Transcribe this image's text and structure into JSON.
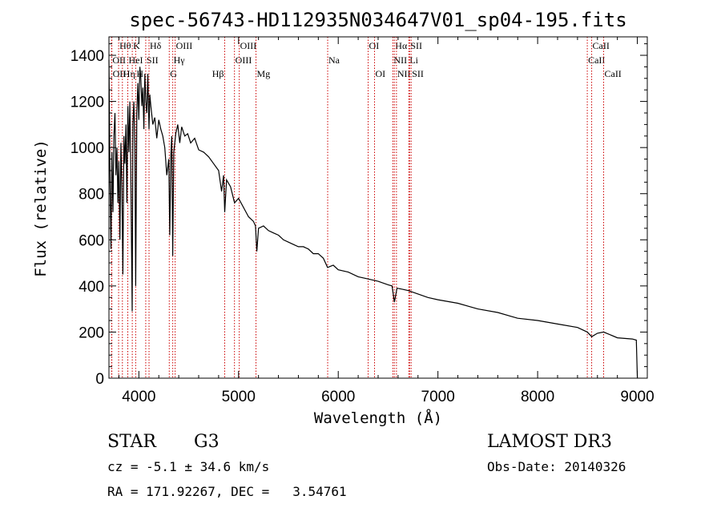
{
  "info": {
    "object_class": "STAR",
    "subclass": "G3",
    "survey": "LAMOST DR3",
    "cz": "cz = -5.1 ± 34.6 km/s",
    "obs_date": "Obs-Date: 20140326",
    "radec": "RA = 171.92267, DEC =   3.54761"
  },
  "colors": {
    "spectrum": "#000000",
    "line_marker": "#cc0000",
    "axes": "#000000"
  },
  "chart_data": {
    "type": "line",
    "title": "spec-56743-HD112935N034647V01_sp04-195.fits",
    "xlabel": "Wavelength (Å)",
    "ylabel": "Flux (relative)",
    "xlim": [
      3700,
      9100
    ],
    "ylim": [
      0,
      1480
    ],
    "xticks": [
      4000,
      5000,
      6000,
      7000,
      8000,
      9000
    ],
    "yticks": [
      0,
      200,
      400,
      600,
      800,
      1000,
      1200,
      1400
    ],
    "spectrum": {
      "name": "flux",
      "x": [
        3700,
        3710,
        3720,
        3730,
        3740,
        3750,
        3760,
        3770,
        3780,
        3790,
        3800,
        3810,
        3820,
        3830,
        3840,
        3850,
        3860,
        3870,
        3880,
        3890,
        3900,
        3910,
        3920,
        3933,
        3940,
        3950,
        3960,
        3968,
        3980,
        3990,
        4000,
        4010,
        4020,
        4030,
        4040,
        4050,
        4060,
        4070,
        4080,
        4090,
        4102,
        4110,
        4120,
        4140,
        4160,
        4180,
        4200,
        4220,
        4240,
        4260,
        4280,
        4300,
        4310,
        4320,
        4330,
        4340,
        4350,
        4370,
        4390,
        4410,
        4430,
        4460,
        4490,
        4520,
        4560,
        4600,
        4650,
        4700,
        4750,
        4800,
        4830,
        4850,
        4861,
        4880,
        4920,
        4960,
        5000,
        5050,
        5100,
        5150,
        5170,
        5183,
        5200,
        5250,
        5300,
        5350,
        5400,
        5450,
        5500,
        5550,
        5600,
        5650,
        5700,
        5750,
        5800,
        5850,
        5893,
        5950,
        6000,
        6100,
        6200,
        6300,
        6400,
        6500,
        6540,
        6563,
        6590,
        6650,
        6700,
        6800,
        6900,
        7000,
        7200,
        7400,
        7600,
        7800,
        8000,
        8200,
        8400,
        8498,
        8542,
        8600,
        8662,
        8800,
        8950,
        8990,
        9000
      ],
      "values": [
        1380,
        900,
        560,
        980,
        720,
        1050,
        1150,
        880,
        1000,
        760,
        940,
        600,
        1020,
        820,
        450,
        1050,
        930,
        1100,
        760,
        1180,
        980,
        1200,
        860,
        290,
        1100,
        1200,
        1000,
        400,
        1150,
        1280,
        1120,
        1350,
        1300,
        1180,
        1260,
        1080,
        1320,
        1200,
        1150,
        1320,
        1080,
        1230,
        1180,
        1100,
        1130,
        1040,
        1120,
        1080,
        1050,
        1000,
        880,
        950,
        620,
        960,
        1050,
        530,
        980,
        1060,
        1100,
        1020,
        1090,
        1050,
        1060,
        1020,
        1040,
        990,
        980,
        960,
        930,
        900,
        810,
        880,
        720,
        860,
        830,
        760,
        780,
        740,
        700,
        680,
        660,
        550,
        650,
        660,
        640,
        630,
        620,
        600,
        590,
        580,
        570,
        570,
        560,
        540,
        540,
        520,
        480,
        490,
        470,
        460,
        440,
        430,
        420,
        405,
        400,
        330,
        390,
        385,
        380,
        365,
        350,
        340,
        325,
        300,
        285,
        260,
        250,
        235,
        220,
        200,
        180,
        195,
        200,
        175,
        170,
        165,
        0
      ]
    },
    "line_markers": [
      {
        "label": "Hθ",
        "wl": 3797,
        "row": 0,
        "side": "right"
      },
      {
        "label": "OII",
        "wl": 3727,
        "row": 1,
        "side": "right"
      },
      {
        "label": "OII",
        "wl": 3729,
        "row": 2,
        "side": "right"
      },
      {
        "label": "K",
        "wl": 3934,
        "row": 0,
        "side": "right"
      },
      {
        "label": "HeI",
        "wl": 3889,
        "row": 1,
        "side": "right"
      },
      {
        "label": "Hη",
        "wl": 3835,
        "row": 2,
        "side": "right"
      },
      {
        "label": "SII",
        "wl": 4069,
        "row": 1,
        "side": "right"
      },
      {
        "label": "H",
        "wl": 3968,
        "row": 2,
        "side": "right"
      },
      {
        "label": "Hδ",
        "wl": 4102,
        "row": 0,
        "side": "right"
      },
      {
        "label": "OIII",
        "wl": 4364,
        "row": 0,
        "side": "right"
      },
      {
        "label": "Hγ",
        "wl": 4340,
        "row": 1,
        "side": "right"
      },
      {
        "label": "G",
        "wl": 4305,
        "row": 2,
        "side": "right"
      },
      {
        "label": "Hβ",
        "wl": 4861,
        "row": 2,
        "side": "left"
      },
      {
        "label": "OIII",
        "wl": 4959,
        "row": 1,
        "side": "right"
      },
      {
        "label": "OIII",
        "wl": 5007,
        "row": 0,
        "side": "right"
      },
      {
        "label": "Mg",
        "wl": 5175,
        "row": 2,
        "side": "right"
      },
      {
        "label": "Na",
        "wl": 5894,
        "row": 1,
        "side": "right"
      },
      {
        "label": "OI",
        "wl": 6300,
        "row": 0,
        "side": "right"
      },
      {
        "label": "OI",
        "wl": 6364,
        "row": 2,
        "side": "right"
      },
      {
        "label": "Hα",
        "wl": 6563,
        "row": 0,
        "side": "right"
      },
      {
        "label": "NII",
        "wl": 6548,
        "row": 1,
        "side": "right"
      },
      {
        "label": "NII",
        "wl": 6584,
        "row": 2,
        "side": "right"
      },
      {
        "label": "SII",
        "wl": 6716,
        "row": 0,
        "side": "right"
      },
      {
        "label": "Li",
        "wl": 6708,
        "row": 1,
        "side": "right"
      },
      {
        "label": "SII",
        "wl": 6731,
        "row": 2,
        "side": "right"
      },
      {
        "label": "CaII",
        "wl": 8542,
        "row": 0,
        "side": "right"
      },
      {
        "label": "CaII",
        "wl": 8498,
        "row": 1,
        "side": "right"
      },
      {
        "label": "CaII",
        "wl": 8662,
        "row": 2,
        "side": "right"
      }
    ]
  }
}
